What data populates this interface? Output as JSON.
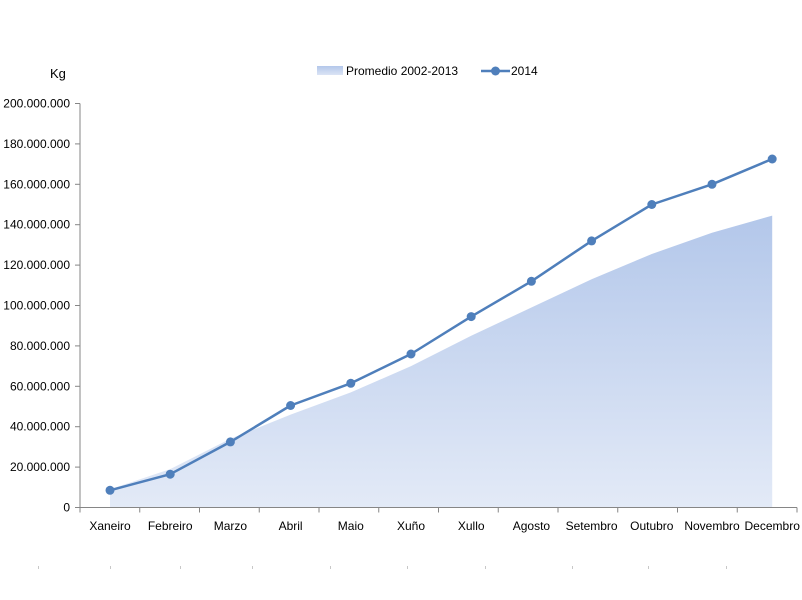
{
  "chart_data": {
    "type": "area",
    "ylabel": "Kg",
    "xlabel": "",
    "title": "",
    "categories": [
      "Xaneiro",
      "Febreiro",
      "Marzo",
      "Abril",
      "Maio",
      "Xuño",
      "Xullo",
      "Agosto",
      "Setembro",
      "Outubro",
      "Novembro",
      "Decembro"
    ],
    "ylim": [
      0,
      200000000
    ],
    "yticks": [
      0,
      20000000,
      40000000,
      60000000,
      80000000,
      100000000,
      120000000,
      140000000,
      160000000,
      180000000,
      200000000
    ],
    "ytick_labels": [
      "0",
      "20.000.000",
      "40.000.000",
      "60.000.000",
      "80.000.000",
      "100.000.000",
      "120.000.000",
      "140.000.000",
      "160.000.000",
      "180.000.000",
      "200.000.000"
    ],
    "legend_position": "top-center",
    "grid": false,
    "series": [
      {
        "name": "Promedio 2002-2013",
        "type": "area",
        "color": "#b8cbeb",
        "values": [
          9000000,
          19000000,
          34000000,
          46000000,
          57000000,
          70000000,
          85000000,
          99000000,
          113000000,
          125500000,
          136000000,
          144500000
        ]
      },
      {
        "name": "2014",
        "type": "line",
        "color": "#4f7fbb",
        "values": [
          8500000,
          16500000,
          32500000,
          50500000,
          61500000,
          76000000,
          94500000,
          112000000,
          132000000,
          150000000,
          160000000,
          172500000
        ]
      }
    ]
  }
}
